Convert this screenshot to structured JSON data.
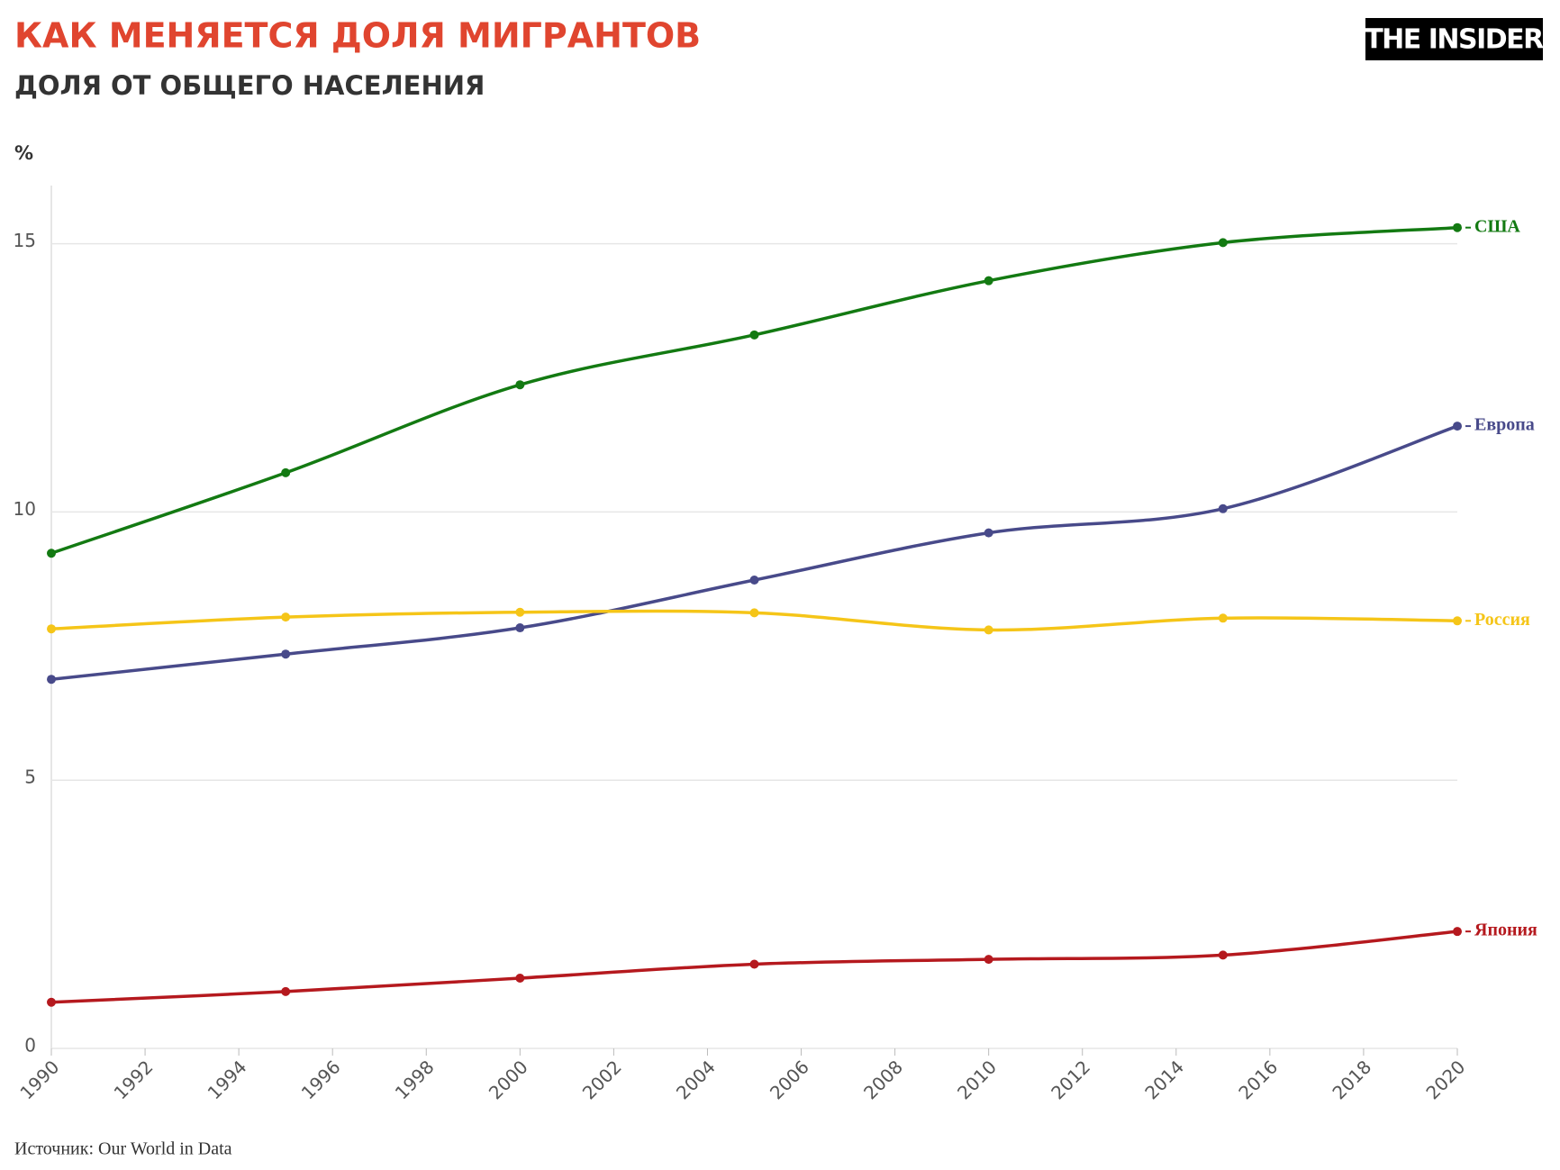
{
  "logo": "THE INSIDER",
  "chart_data": {
    "type": "line",
    "title": "КАК МЕНЯЕТСЯ ДОЛЯ МИГРАНТОВ",
    "subtitle": "ДОЛЯ ОТ ОБЩЕГО НАСЕЛЕНИЯ",
    "y_unit": "%",
    "source": "Источник: Our World in Data",
    "x": [
      1990,
      1995,
      2000,
      2005,
      2010,
      2015,
      2020
    ],
    "series": [
      {
        "name": "США",
        "color": "#137a12",
        "values": [
          9.23,
          10.73,
          12.37,
          13.3,
          14.31,
          15.02,
          15.3
        ]
      },
      {
        "name": "Европа",
        "color": "#484a8a",
        "values": [
          6.88,
          7.35,
          7.84,
          8.73,
          9.61,
          10.06,
          11.6
        ]
      },
      {
        "name": "Россия",
        "color": "#f5c518",
        "values": [
          7.82,
          8.04,
          8.13,
          8.12,
          7.8,
          8.02,
          7.97
        ]
      },
      {
        "name": "Япония",
        "color": "#b5191e",
        "values": [
          0.86,
          1.06,
          1.31,
          1.57,
          1.66,
          1.74,
          2.18
        ]
      }
    ],
    "xlim": [
      1990,
      2020
    ],
    "xticks": [
      1990,
      1992,
      1994,
      1996,
      1998,
      2000,
      2002,
      2004,
      2006,
      2008,
      2010,
      2012,
      2014,
      2016,
      2018,
      2020
    ],
    "ylim": [
      0,
      16
    ],
    "yticks": [
      0,
      5,
      10,
      15
    ],
    "grid": true
  }
}
